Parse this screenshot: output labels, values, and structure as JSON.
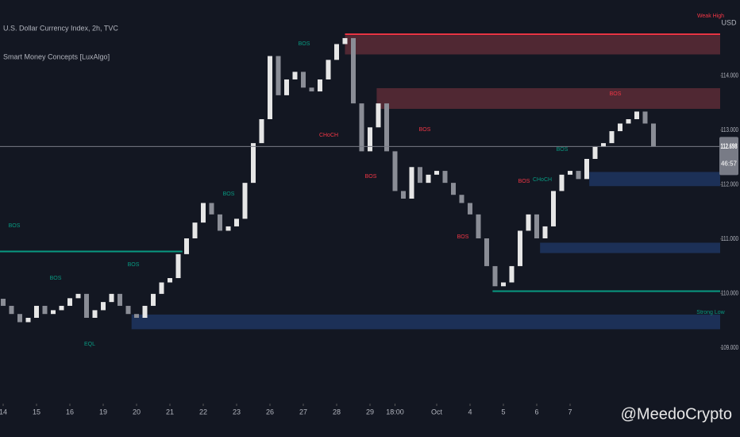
{
  "chart_data": {
    "type": "candlestick",
    "title": "U.S. Dollar Currency Index, 2h, TVC",
    "subtitle": "Smart Money Concepts [LuxAlgo]",
    "currency": "USD",
    "watermark": "@MeedoCrypto",
    "countdown": "46:57",
    "up_color": "#e6e6e6",
    "down_color": "#8a8d96",
    "xlim": [
      -0.38,
      86.0
    ],
    "ylim": [
      108.09,
      115.39
    ],
    "yticks": [
      {
        "value": 109,
        "label": "109.000"
      },
      {
        "value": 110,
        "label": "110.000"
      },
      {
        "value": 111,
        "label": "111.000"
      },
      {
        "value": 112,
        "label": "112.000"
      },
      {
        "value": 113,
        "label": "113.000"
      },
      {
        "value": 114,
        "label": "114.000"
      }
    ],
    "xticks": [
      {
        "value": 0,
        "label": "14"
      },
      {
        "value": 4,
        "label": "15"
      },
      {
        "value": 8,
        "label": "16"
      },
      {
        "value": 12,
        "label": "19"
      },
      {
        "value": 16,
        "label": "20"
      },
      {
        "value": 20,
        "label": "21"
      },
      {
        "value": 24,
        "label": "22"
      },
      {
        "value": 28,
        "label": "23"
      },
      {
        "value": 32,
        "label": "26"
      },
      {
        "value": 36,
        "label": "27"
      },
      {
        "value": 40,
        "label": "28"
      },
      {
        "value": 44,
        "label": "29"
      },
      {
        "value": 47,
        "label": "18:00"
      },
      {
        "value": 52,
        "label": "Oct"
      },
      {
        "value": 56,
        "label": "4"
      },
      {
        "value": 60,
        "label": "5"
      },
      {
        "value": 64,
        "label": "6"
      },
      {
        "value": 68,
        "label": "7"
      }
    ],
    "open": [
      109.9,
      109.77,
      109.62,
      109.47,
      109.55,
      109.77,
      109.62,
      109.69,
      109.77,
      109.91,
      109.99,
      109.55,
      109.69,
      109.84,
      109.99,
      109.77,
      109.62,
      109.55,
      109.77,
      109.99,
      110.2,
      110.28,
      110.72,
      111.01,
      111.3,
      111.66,
      111.45,
      111.15,
      111.23,
      111.37,
      112.03,
      112.76,
      113.2,
      114.36,
      113.64,
      113.93,
      114.07,
      113.78,
      113.71,
      113.93,
      114.29,
      114.58,
      114.69,
      113.49,
      112.61,
      113.05,
      113.49,
      112.61,
      111.88,
      111.74,
      112.32,
      112.03,
      112.18,
      112.25,
      112.03,
      111.81,
      111.66,
      111.45,
      111.01,
      110.5,
      110.13,
      110.2,
      110.5,
      111.15,
      111.45,
      111.01,
      111.23,
      111.88,
      112.18,
      112.25,
      112.1,
      112.47,
      112.69,
      112.76,
      112.98,
      113.12,
      113.2,
      113.34,
      113.12
    ],
    "close": [
      109.77,
      109.62,
      109.47,
      109.55,
      109.77,
      109.62,
      109.69,
      109.77,
      109.91,
      109.99,
      109.55,
      109.69,
      109.84,
      109.99,
      109.77,
      109.62,
      109.55,
      109.77,
      109.99,
      110.2,
      110.28,
      110.72,
      111.01,
      111.3,
      111.66,
      111.45,
      111.15,
      111.23,
      111.37,
      112.03,
      112.76,
      113.2,
      114.36,
      113.64,
      113.93,
      114.07,
      113.78,
      113.71,
      113.93,
      114.29,
      114.58,
      114.69,
      113.49,
      112.61,
      113.05,
      113.49,
      112.61,
      111.88,
      111.74,
      112.32,
      112.03,
      112.18,
      112.25,
      112.03,
      111.81,
      111.66,
      111.45,
      111.01,
      110.5,
      110.13,
      110.2,
      110.5,
      111.15,
      111.45,
      111.01,
      111.23,
      111.88,
      112.18,
      112.25,
      112.1,
      112.47,
      112.69,
      112.76,
      112.98,
      113.12,
      113.2,
      113.34,
      113.12,
      112.698
    ],
    "zones": [
      {
        "top": 114.74,
        "bottom": 114.39,
        "from": 41,
        "color": "#5c2b36"
      },
      {
        "top": 113.77,
        "bottom": 113.39,
        "from": 44.8,
        "color": "#5c2b36"
      },
      {
        "top": 112.23,
        "bottom": 111.97,
        "from": 70.3,
        "color": "#1e3560"
      },
      {
        "top": 110.93,
        "bottom": 110.74,
        "from": 64.4,
        "color": "#1e3560"
      },
      {
        "top": 109.61,
        "bottom": 109.34,
        "from": 15.4,
        "color": "#1e3560"
      }
    ],
    "levels": [
      {
        "value": 110.04,
        "from": 58.7,
        "color": "#089981"
      },
      {
        "value": 110.77,
        "from": -0.38,
        "to": 21.5,
        "color": "#089981"
      },
      {
        "value": 114.76,
        "from": 41,
        "color": "#f23645"
      }
    ],
    "annotations": [
      {
        "text": "BOS",
        "color": "#089981"
      },
      {
        "text": "BOS",
        "color": "#089981"
      },
      {
        "text": "BOS",
        "color": "#089981"
      },
      {
        "text": "BOS",
        "color": "#089981"
      },
      {
        "text": "BOS",
        "color": "#089981"
      },
      {
        "text": "EQL",
        "color": "#089981"
      },
      {
        "text": "CHoCH",
        "color": "#f23645"
      },
      {
        "text": "BOS",
        "color": "#f23645"
      },
      {
        "text": "BOS",
        "color": "#f23645"
      },
      {
        "text": "BOS",
        "color": "#f23645"
      },
      {
        "text": "BOS",
        "color": "#f23645"
      },
      {
        "text": "CHoCH",
        "color": "#089981"
      },
      {
        "text": "BOS",
        "color": "#089981"
      },
      {
        "text": "BOS",
        "color": "#f23645"
      },
      {
        "text": "Weak High",
        "color": "#f23645"
      },
      {
        "text": "Strong Low",
        "color": "#089981"
      }
    ]
  }
}
